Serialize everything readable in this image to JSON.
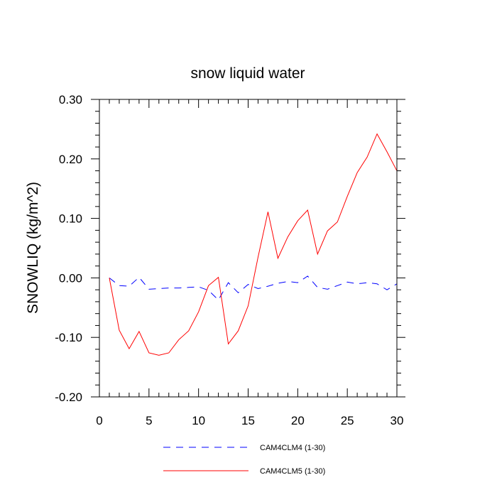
{
  "chart_data": {
    "type": "line",
    "title": "snow liquid water",
    "xlabel": "",
    "ylabel": "SNOWLIQ  (kg/m^2)",
    "xlim": [
      0,
      30
    ],
    "ylim": [
      -0.2,
      0.3
    ],
    "xticks": [
      0,
      5,
      10,
      15,
      20,
      25,
      30
    ],
    "xtick_labels": [
      "0",
      "5",
      "10",
      "15",
      "20",
      "25",
      "30"
    ],
    "yticks": [
      -0.2,
      -0.1,
      0.0,
      0.1,
      0.2,
      0.3
    ],
    "ytick_labels": [
      "-0.20",
      "-0.10",
      "0.00",
      "0.10",
      "0.20",
      "0.30"
    ],
    "grid": false,
    "legend_position": "bottom-center",
    "x": [
      1,
      2,
      3,
      4,
      5,
      6,
      7,
      8,
      9,
      10,
      11,
      12,
      13,
      14,
      15,
      16,
      17,
      18,
      19,
      20,
      21,
      22,
      23,
      24,
      25,
      26,
      27,
      28,
      29,
      30
    ],
    "series": [
      {
        "name": "CAM4CLM4 (1-30)",
        "color": "#0000ff",
        "dash": "dashed",
        "values": [
          0.0,
          -0.013,
          -0.014,
          0.001,
          -0.019,
          -0.018,
          -0.017,
          -0.017,
          -0.016,
          -0.015,
          -0.021,
          -0.037,
          -0.008,
          -0.025,
          -0.011,
          -0.018,
          -0.014,
          -0.009,
          -0.006,
          -0.008,
          0.003,
          -0.016,
          -0.019,
          -0.013,
          -0.007,
          -0.01,
          -0.008,
          -0.01,
          -0.02,
          -0.01
        ]
      },
      {
        "name": "CAM4CLM5 (1-30)",
        "color": "#ff0000",
        "dash": "solid",
        "values": [
          0.0,
          -0.088,
          -0.119,
          -0.09,
          -0.126,
          -0.13,
          -0.126,
          -0.104,
          -0.089,
          -0.057,
          -0.013,
          0.001,
          -0.111,
          -0.089,
          -0.047,
          0.035,
          0.111,
          0.033,
          0.069,
          0.096,
          0.114,
          0.04,
          0.079,
          0.094,
          0.137,
          0.177,
          0.203,
          0.242,
          0.212,
          0.18
        ]
      }
    ]
  }
}
